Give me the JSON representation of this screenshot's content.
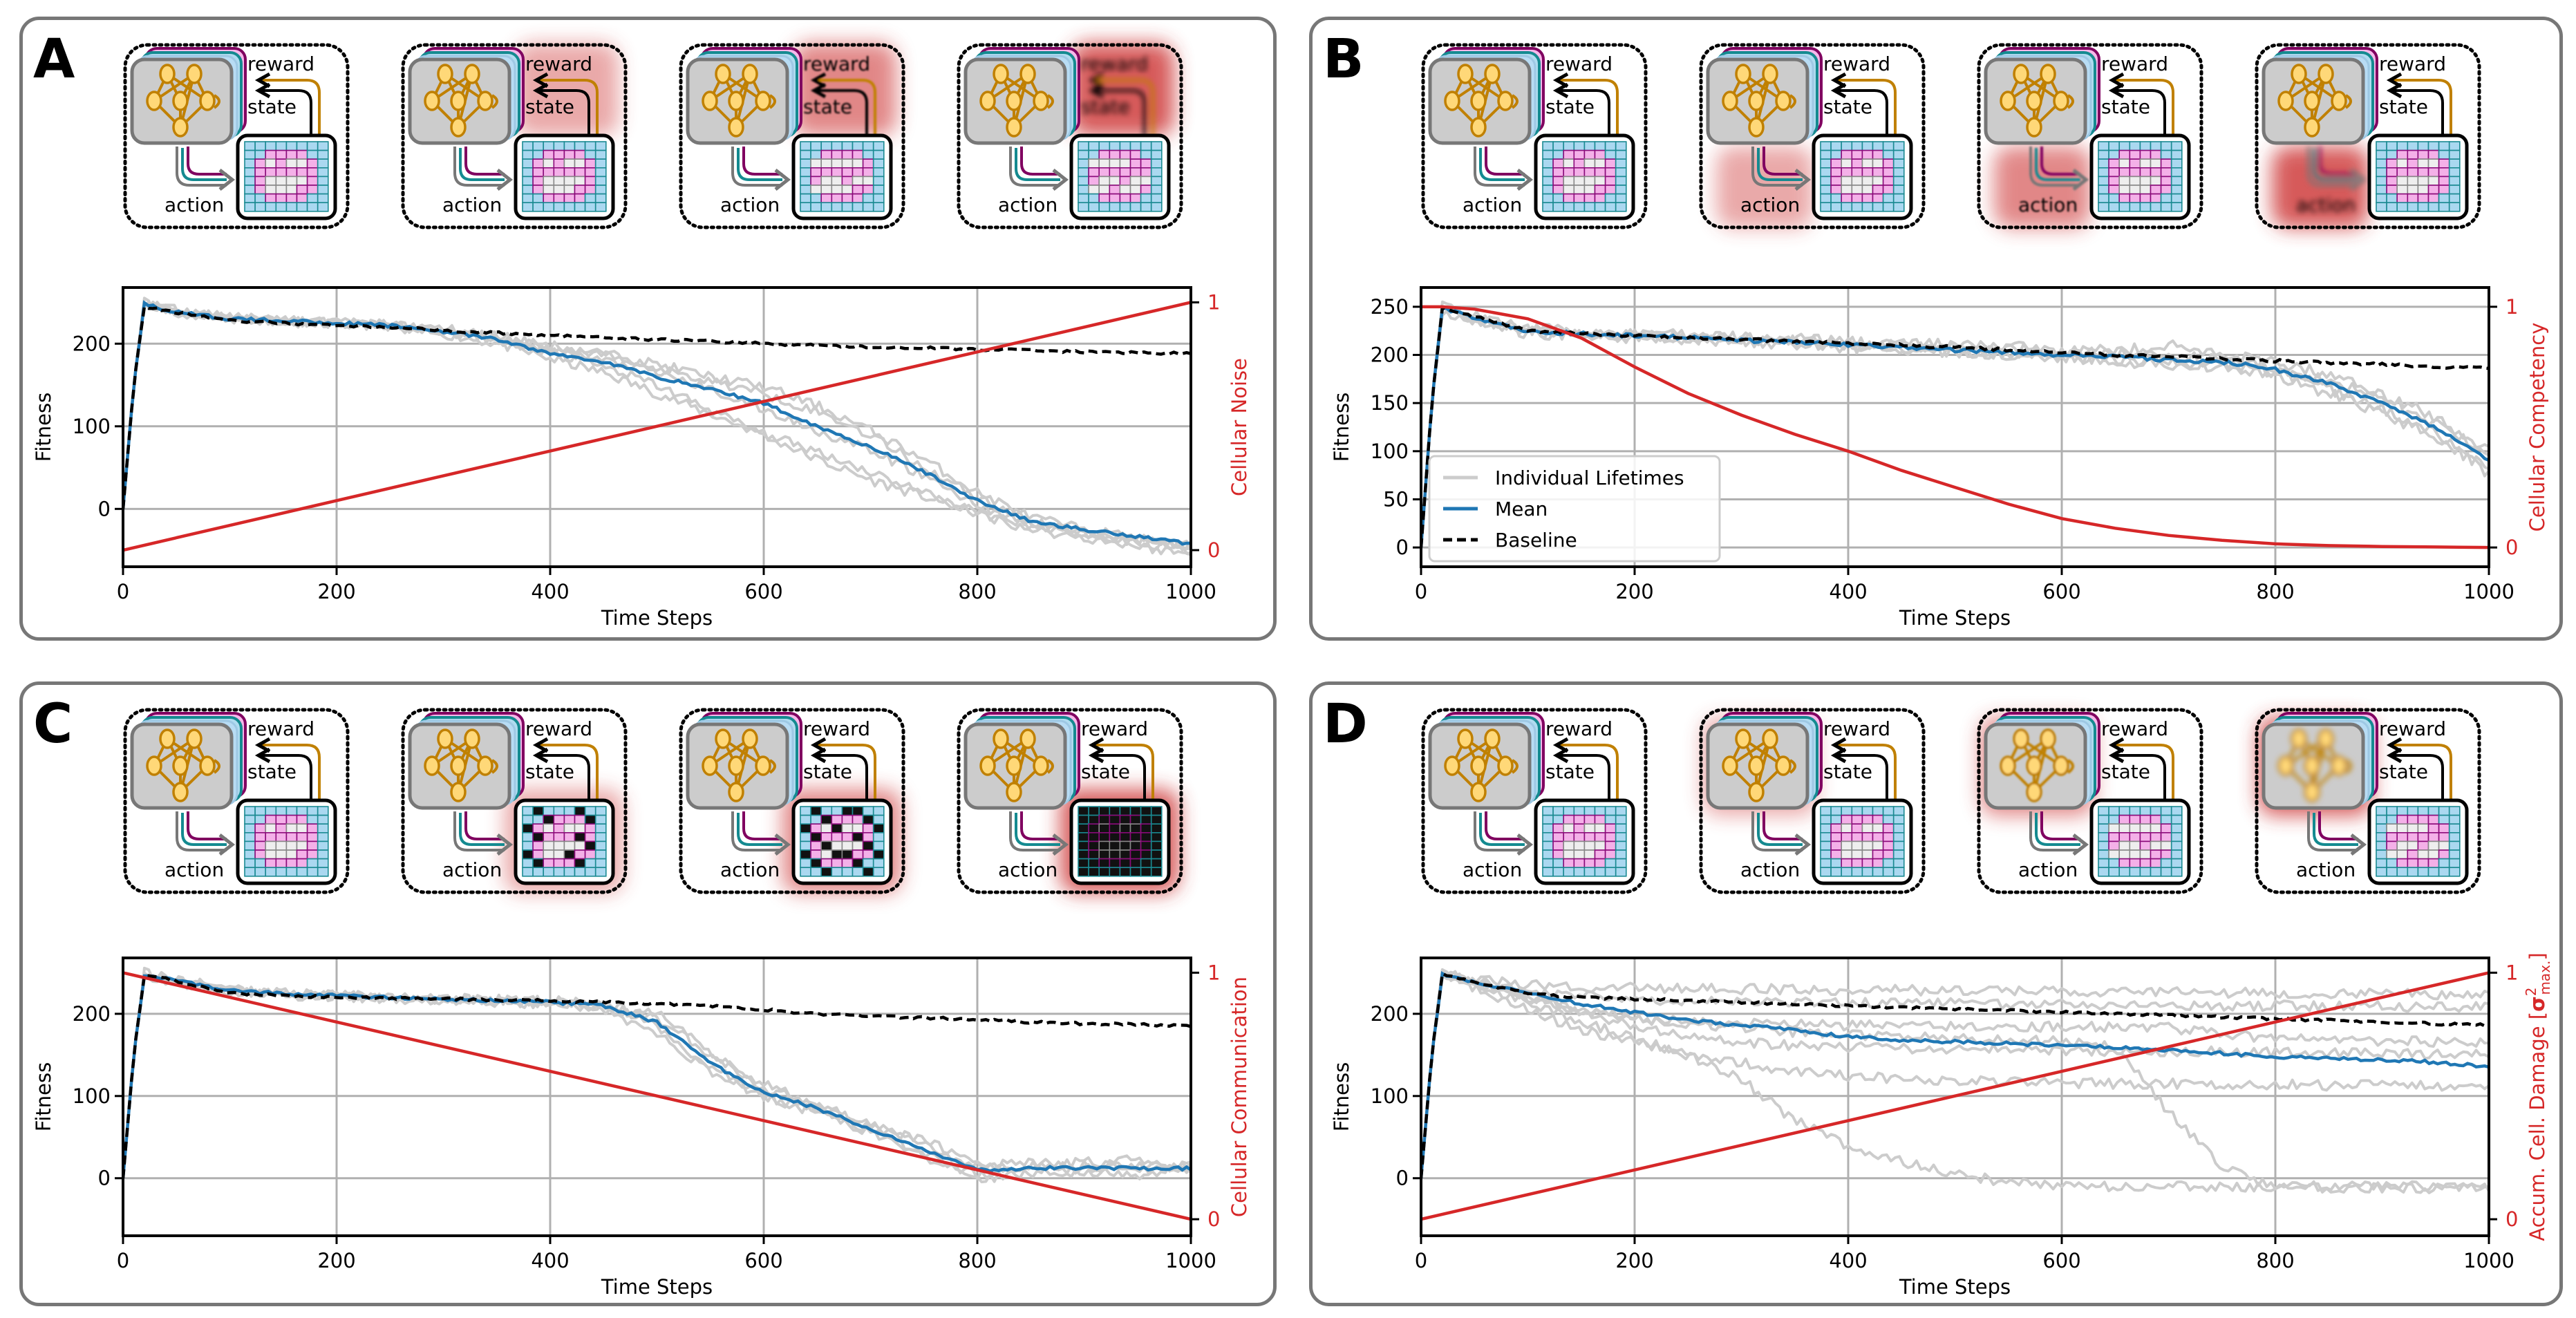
{
  "figure": {
    "icon_labels": {
      "reward": "reward",
      "state": "state",
      "action": "action"
    },
    "colors": {
      "individual": "#cccccc",
      "mean": "#1f77b4",
      "baseline": "#000000",
      "secondary": "#d62728",
      "panel_border": "#777777",
      "node_fill": "#ffd878",
      "node_stroke": "#c08000",
      "cell_blue": "#aad8f0",
      "cell_teal": "#1a8a92",
      "cell_pink": "#f4b0e8",
      "cell_purple": "#8b0a7a",
      "glow": "#cc3333"
    },
    "legend": {
      "placement": "lower-left",
      "items": [
        "Individual Lifetimes",
        "Mean",
        "Baseline"
      ]
    }
  },
  "chart_data": [
    {
      "panel": "A",
      "type": "line",
      "xlabel": "Time Steps",
      "ylabel": "Fitness",
      "y2label": "Cellular Noise",
      "xlim": [
        0,
        1000
      ],
      "ylim": [
        -70,
        268
      ],
      "y2lim": [
        -0.067,
        1.06
      ],
      "xticks": [
        0,
        200,
        400,
        600,
        800,
        1000
      ],
      "yticks": [
        0,
        100,
        200
      ],
      "y2ticks": [
        0,
        1
      ],
      "grid": true,
      "icons": [
        {
          "glow": "state",
          "level": 0
        },
        {
          "glow": "state",
          "level": 0.3
        },
        {
          "glow": "state",
          "level": 0.6
        },
        {
          "glow": "state",
          "level": 1
        }
      ],
      "x": [
        0,
        10,
        20,
        50,
        100,
        150,
        200,
        250,
        300,
        350,
        400,
        450,
        500,
        550,
        600,
        650,
        700,
        750,
        800,
        850,
        900,
        950,
        1000
      ],
      "baseline": [
        0,
        150,
        245,
        238,
        228,
        225,
        222,
        220,
        216,
        213,
        210,
        207,
        205,
        203,
        200,
        198,
        196,
        195,
        193,
        192,
        190,
        189,
        188
      ],
      "mean": [
        0,
        150,
        248,
        238,
        230,
        228,
        225,
        222,
        215,
        205,
        188,
        178,
        160,
        145,
        128,
        100,
        75,
        45,
        10,
        -15,
        -25,
        -33,
        -42
      ],
      "individual": [
        [
          0,
          150,
          250,
          240,
          232,
          228,
          225,
          222,
          212,
          200,
          182,
          165,
          140,
          115,
          90,
          60,
          35,
          15,
          -5,
          -20,
          -30,
          -38,
          -45
        ],
        [
          0,
          150,
          250,
          240,
          232,
          228,
          225,
          223,
          218,
          210,
          198,
          188,
          175,
          160,
          148,
          125,
          95,
          60,
          20,
          -10,
          -25,
          -35,
          -48
        ],
        [
          0,
          150,
          250,
          240,
          232,
          228,
          225,
          222,
          215,
          205,
          190,
          172,
          150,
          120,
          90,
          70,
          45,
          20,
          -5,
          -25,
          -35,
          -45,
          -55
        ],
        [
          0,
          150,
          250,
          238,
          230,
          226,
          224,
          220,
          214,
          206,
          194,
          185,
          170,
          155,
          140,
          118,
          90,
          50,
          15,
          -15,
          -30,
          -40,
          -50
        ],
        [
          0,
          150,
          250,
          240,
          231,
          228,
          225,
          222,
          216,
          208,
          190,
          180,
          165,
          145,
          120,
          95,
          70,
          40,
          5,
          -20,
          -28,
          -36,
          -44
        ]
      ],
      "secondary": {
        "x": [
          0,
          1000
        ],
        "y": [
          0,
          1
        ]
      }
    },
    {
      "panel": "B",
      "type": "line",
      "xlabel": "Time Steps",
      "ylabel": "Fitness",
      "y2label": "Cellular Competency",
      "xlim": [
        0,
        1000
      ],
      "ylim": [
        -20,
        270
      ],
      "y2lim": [
        -0.08,
        1.08
      ],
      "xticks": [
        0,
        200,
        400,
        600,
        800,
        1000
      ],
      "yticks": [
        0,
        50,
        100,
        150,
        200,
        250
      ],
      "y2ticks": [
        0,
        1
      ],
      "grid": true,
      "legend": true,
      "icons": [
        {
          "glow": "action",
          "level": 0
        },
        {
          "glow": "action",
          "level": 0.3
        },
        {
          "glow": "action",
          "level": 0.6
        },
        {
          "glow": "action",
          "level": 1
        }
      ],
      "x": [
        0,
        10,
        20,
        50,
        100,
        150,
        200,
        250,
        300,
        350,
        400,
        450,
        500,
        550,
        600,
        650,
        700,
        750,
        800,
        850,
        900,
        950,
        1000
      ],
      "baseline": [
        0,
        150,
        248,
        240,
        225,
        222,
        220,
        218,
        216,
        214,
        212,
        210,
        208,
        205,
        203,
        200,
        198,
        196,
        194,
        192,
        190,
        188,
        186
      ],
      "mean": [
        0,
        150,
        248,
        238,
        225,
        222,
        220,
        218,
        215,
        213,
        210,
        208,
        205,
        203,
        200,
        198,
        195,
        193,
        185,
        170,
        150,
        125,
        90
      ],
      "individual": [
        [
          0,
          150,
          250,
          240,
          228,
          224,
          222,
          220,
          218,
          216,
          214,
          212,
          210,
          208,
          206,
          204,
          210,
          200,
          192,
          180,
          160,
          135,
          100
        ],
        [
          0,
          150,
          246,
          236,
          222,
          220,
          218,
          216,
          213,
          211,
          208,
          205,
          202,
          200,
          197,
          194,
          190,
          188,
          178,
          160,
          140,
          115,
          80
        ],
        [
          0,
          150,
          250,
          238,
          226,
          223,
          221,
          219,
          217,
          215,
          212,
          210,
          207,
          206,
          204,
          202,
          198,
          196,
          188,
          172,
          155,
          130,
          95
        ],
        [
          0,
          150,
          247,
          237,
          224,
          221,
          219,
          217,
          214,
          212,
          209,
          207,
          204,
          201,
          198,
          196,
          193,
          190,
          182,
          165,
          145,
          120,
          75
        ]
      ],
      "secondary": {
        "x": [
          0,
          10,
          20,
          50,
          100,
          150,
          200,
          250,
          300,
          350,
          400,
          450,
          500,
          550,
          600,
          650,
          700,
          750,
          800,
          850,
          900,
          950,
          1000
        ],
        "y": [
          1,
          1,
          1,
          0.99,
          0.95,
          0.87,
          0.75,
          0.64,
          0.55,
          0.47,
          0.4,
          0.32,
          0.25,
          0.18,
          0.12,
          0.08,
          0.05,
          0.03,
          0.015,
          0.008,
          0.004,
          0.002,
          0
        ]
      }
    },
    {
      "panel": "C",
      "type": "line",
      "xlabel": "Time Steps",
      "ylabel": "Fitness",
      "y2label": "Cellular Communication",
      "xlim": [
        0,
        1000
      ],
      "ylim": [
        -70,
        268
      ],
      "y2lim": [
        -0.067,
        1.06
      ],
      "xticks": [
        0,
        200,
        400,
        600,
        800,
        1000
      ],
      "yticks": [
        0,
        100,
        200
      ],
      "y2ticks": [
        0,
        1
      ],
      "grid": true,
      "icons": [
        {
          "glow": "grid",
          "level": 0
        },
        {
          "glow": "grid",
          "level": 0.3
        },
        {
          "glow": "grid",
          "level": 0.6
        },
        {
          "glow": "grid",
          "level": 1
        }
      ],
      "x": [
        0,
        10,
        20,
        50,
        100,
        150,
        200,
        250,
        300,
        350,
        400,
        450,
        500,
        550,
        600,
        650,
        700,
        750,
        800,
        850,
        900,
        950,
        1000
      ],
      "baseline": [
        0,
        150,
        248,
        240,
        225,
        222,
        220,
        219,
        218,
        217,
        216,
        214,
        212,
        210,
        205,
        200,
        197,
        195,
        193,
        190,
        188,
        187,
        185
      ],
      "mean": [
        0,
        150,
        248,
        240,
        228,
        225,
        222,
        220,
        218,
        216,
        214,
        210,
        190,
        140,
        105,
        85,
        60,
        35,
        10,
        12,
        13,
        12,
        12
      ],
      "individual": [
        [
          0,
          150,
          250,
          242,
          230,
          226,
          223,
          221,
          219,
          217,
          215,
          205,
          175,
          130,
          100,
          80,
          55,
          25,
          5,
          15,
          20,
          10,
          15
        ],
        [
          0,
          150,
          246,
          238,
          226,
          223,
          220,
          218,
          216,
          214,
          212,
          208,
          195,
          150,
          115,
          90,
          65,
          40,
          15,
          20,
          10,
          25,
          5
        ],
        [
          0,
          150,
          250,
          241,
          229,
          226,
          223,
          221,
          219,
          217,
          216,
          212,
          185,
          135,
          100,
          82,
          58,
          30,
          0,
          5,
          15,
          0,
          20
        ],
        [
          0,
          150,
          247,
          239,
          227,
          224,
          221,
          219,
          217,
          215,
          213,
          211,
          200,
          155,
          110,
          88,
          62,
          45,
          20,
          10,
          5,
          18,
          10
        ]
      ],
      "secondary": {
        "x": [
          0,
          1000
        ],
        "y": [
          1,
          0
        ]
      }
    },
    {
      "panel": "D",
      "type": "line",
      "xlabel": "Time Steps",
      "ylabel": "Fitness",
      "y2label": {
        "prefix": "Accum. Cell. Damage [",
        "symbol": "σ",
        "sup": "2",
        "sub": "max.",
        "suffix": "]"
      },
      "xlim": [
        0,
        1000
      ],
      "ylim": [
        -70,
        268
      ],
      "y2lim": [
        -0.067,
        1.06
      ],
      "xticks": [
        0,
        200,
        400,
        600,
        800,
        1000
      ],
      "yticks": [
        0,
        100,
        200
      ],
      "y2ticks": [
        0,
        1
      ],
      "grid": true,
      "icons": [
        {
          "glow": "network",
          "level": 0
        },
        {
          "glow": "network",
          "level": 0.3
        },
        {
          "glow": "network",
          "level": 0.6
        },
        {
          "glow": "network",
          "level": 1
        }
      ],
      "x": [
        0,
        10,
        20,
        50,
        100,
        150,
        200,
        250,
        300,
        350,
        400,
        450,
        500,
        550,
        600,
        650,
        700,
        750,
        800,
        850,
        900,
        950,
        1000
      ],
      "baseline": [
        0,
        150,
        248,
        238,
        225,
        220,
        218,
        216,
        214,
        212,
        210,
        208,
        206,
        204,
        202,
        200,
        198,
        196,
        194,
        192,
        190,
        188,
        186
      ],
      "mean": [
        0,
        150,
        248,
        238,
        225,
        212,
        202,
        193,
        186,
        180,
        172,
        168,
        166,
        164,
        161,
        159,
        156,
        152,
        148,
        146,
        144,
        141,
        136
      ],
      "individual": [
        [
          0,
          150,
          250,
          242,
          235,
          232,
          232,
          231,
          230,
          230,
          229,
          229,
          228,
          228,
          227,
          227,
          226,
          226,
          225,
          225,
          224,
          224,
          223
        ],
        [
          0,
          150,
          248,
          240,
          228,
          222,
          218,
          216,
          215,
          214,
          214,
          213,
          213,
          212,
          212,
          211,
          211,
          210,
          210,
          209,
          209,
          208,
          208
        ],
        [
          0,
          150,
          248,
          238,
          222,
          205,
          195,
          190,
          188,
          187,
          186,
          186,
          185,
          185,
          184,
          184,
          183,
          175,
          170,
          168,
          167,
          166,
          165
        ],
        [
          0,
          150,
          246,
          236,
          215,
          190,
          170,
          150,
          140,
          130,
          125,
          120,
          118,
          117,
          116,
          115,
          115,
          114,
          114,
          113,
          113,
          112,
          112
        ],
        [
          0,
          150,
          246,
          232,
          205,
          180,
          165,
          150,
          120,
          70,
          40,
          20,
          5,
          -5,
          -10,
          -10,
          -10,
          -10,
          -10,
          -10,
          -10,
          -10,
          -10
        ],
        [
          0,
          150,
          248,
          238,
          220,
          205,
          195,
          188,
          182,
          178,
          174,
          172,
          170,
          168,
          167,
          160,
          80,
          15,
          -12,
          -12,
          -12,
          -12,
          -12
        ],
        [
          0,
          150,
          248,
          238,
          220,
          200,
          185,
          172,
          165,
          162,
          160,
          158,
          157,
          156,
          155,
          155,
          154,
          154,
          153,
          152,
          152,
          151,
          150
        ]
      ],
      "secondary": {
        "x": [
          0,
          1000
        ],
        "y": [
          0,
          1
        ]
      }
    }
  ]
}
